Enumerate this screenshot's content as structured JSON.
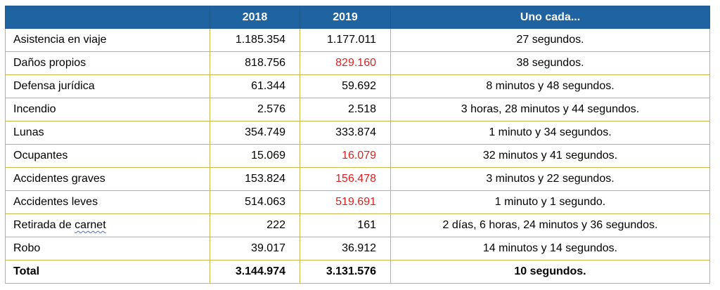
{
  "header": {
    "col0": "",
    "col1": "2018",
    "col2": "2019",
    "col3": "Uno cada..."
  },
  "rows": [
    {
      "name": "Asistencia en viaje",
      "v2018": "1.185.354",
      "v2019": "1.177.011",
      "desc": "27 segundos."
    },
    {
      "name": "Daños propios",
      "v2018": "818.756",
      "v2019": "829.160",
      "desc": "38 segundos."
    },
    {
      "name": "Defensa jurídica",
      "v2018": "61.344",
      "v2019": "59.692",
      "desc": "8 minutos y 48 segundos."
    },
    {
      "name": "Incendio",
      "v2018": "2.576",
      "v2019": "2.518",
      "desc": "3 horas, 28 minutos y 44 segundos."
    },
    {
      "name": "Lunas",
      "v2018": "354.749",
      "v2019": "333.874",
      "desc": "1 minuto y 34 segundos."
    },
    {
      "name": "Ocupantes",
      "v2018": "15.069",
      "v2019": "16.079",
      "desc": "32 minutos y 41 segundos."
    },
    {
      "name": "Accidentes graves",
      "v2018": "153.824",
      "v2019": "156.478",
      "desc": "3 minutos y 22 segundos."
    },
    {
      "name": "Accidentes leves",
      "v2018": "514.063",
      "v2019": "519.691",
      "desc": "1 minuto y 1 segundo."
    },
    {
      "name_part1": "Retirada de ",
      "name_part2": "carnet",
      "v2018": "222",
      "v2019": "161",
      "desc": "2 días, 6 horas, 24 minutos y 36 segundos."
    },
    {
      "name": "Robo",
      "v2018": "39.017",
      "v2019": "36.912",
      "desc": "14 minutos y 14 segundos."
    }
  ],
  "total": {
    "name": "Total",
    "v2018": "3.144.974",
    "v2019": "3.131.576",
    "desc": "10 segundos."
  },
  "colors": {
    "header_bg": "#1f63a0",
    "grid": "#c8b84a",
    "increase_red": "#e0201f"
  }
}
